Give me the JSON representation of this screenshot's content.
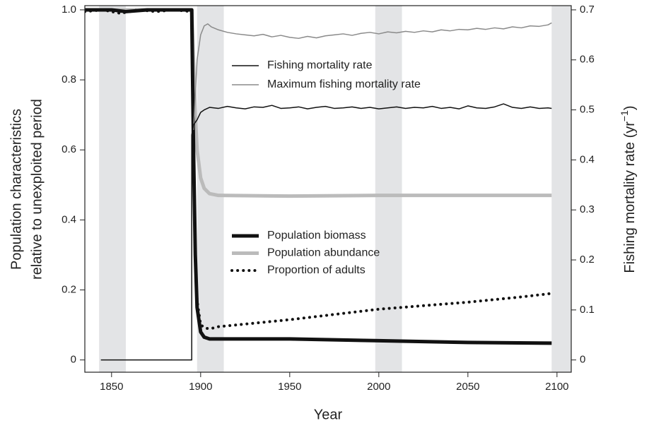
{
  "chart_data": {
    "type": "line",
    "xlabel": "Year",
    "ylabel": [
      "Population characteristics",
      "relative to unexploited period"
    ],
    "y2label": [
      "Fishing mortality rate (yr",
      "−1",
      ")"
    ],
    "xlim": [
      1835,
      2108
    ],
    "xticks": [
      1850,
      1900,
      1950,
      2000,
      2050,
      2100
    ],
    "ylim": [
      -0.035,
      1.012
    ],
    "yticks": [
      0,
      0.2,
      0.4,
      0.6,
      0.8,
      {
        "value": 1,
        "label": "1.0"
      }
    ],
    "y2lim": [
      -0.0245,
      0.7084
    ],
    "y2ticks": [
      0,
      0.1,
      0.2,
      0.3,
      0.4,
      0.5,
      0.6,
      0.7
    ],
    "shaded_periods": [
      [
        1843,
        1858
      ],
      [
        1898,
        1913
      ],
      [
        1998,
        2013
      ],
      [
        2097,
        2108
      ]
    ],
    "series": [
      {
        "name": "Fishing mortality rate",
        "axis": "y2",
        "color": "#111111",
        "width": 1.5,
        "dash": "solid",
        "x": [
          1844,
          1895,
          1895,
          1896,
          1898,
          1900,
          1902,
          1905,
          1910,
          1915,
          1920,
          1925,
          1930,
          1935,
          1940,
          1945,
          1950,
          1955,
          1960,
          1965,
          1970,
          1975,
          1980,
          1985,
          1990,
          1995,
          2000,
          2005,
          2010,
          2015,
          2020,
          2025,
          2030,
          2035,
          2040,
          2045,
          2050,
          2055,
          2060,
          2065,
          2070,
          2075,
          2080,
          2085,
          2090,
          2095,
          2097
        ],
        "values": [
          0,
          0,
          0.45,
          0.47,
          0.48,
          0.495,
          0.5,
          0.505,
          0.503,
          0.507,
          0.504,
          0.502,
          0.506,
          0.505,
          0.509,
          0.503,
          0.504,
          0.506,
          0.502,
          0.505,
          0.507,
          0.503,
          0.504,
          0.506,
          0.503,
          0.505,
          0.502,
          0.504,
          0.506,
          0.503,
          0.505,
          0.504,
          0.507,
          0.503,
          0.505,
          0.502,
          0.508,
          0.504,
          0.503,
          0.506,
          0.512,
          0.505,
          0.503,
          0.506,
          0.503,
          0.504,
          0.503
        ]
      },
      {
        "name": "Maximum fishing mortality rate",
        "axis": "y2",
        "color": "#8a8a8a",
        "width": 1.5,
        "dash": "solid",
        "x": [
          1896,
          1898,
          1900,
          1902,
          1904,
          1906,
          1910,
          1915,
          1920,
          1925,
          1930,
          1935,
          1940,
          1945,
          1950,
          1955,
          1960,
          1965,
          1970,
          1975,
          1980,
          1985,
          1990,
          1995,
          2000,
          2005,
          2010,
          2015,
          2020,
          2025,
          2030,
          2035,
          2040,
          2045,
          2050,
          2055,
          2060,
          2065,
          2070,
          2075,
          2080,
          2085,
          2090,
          2095,
          2097
        ],
        "values": [
          0.46,
          0.6,
          0.65,
          0.668,
          0.672,
          0.666,
          0.66,
          0.655,
          0.652,
          0.65,
          0.648,
          0.651,
          0.646,
          0.649,
          0.645,
          0.643,
          0.647,
          0.644,
          0.648,
          0.65,
          0.652,
          0.649,
          0.653,
          0.655,
          0.652,
          0.656,
          0.654,
          0.657,
          0.655,
          0.658,
          0.656,
          0.66,
          0.658,
          0.661,
          0.66,
          0.663,
          0.661,
          0.664,
          0.662,
          0.666,
          0.664,
          0.668,
          0.667,
          0.67,
          0.674
        ]
      },
      {
        "name": "Population biomass",
        "axis": "y",
        "color": "#111111",
        "width": 5,
        "dash": "solid",
        "x": [
          1835,
          1850,
          1858,
          1870,
          1880,
          1895,
          1896,
          1897,
          1898,
          1900,
          1902,
          1905,
          1950,
          2000,
          2050,
          2097
        ],
        "values": [
          1,
          1,
          0.995,
          1,
          1,
          1,
          0.6,
          0.3,
          0.15,
          0.08,
          0.065,
          0.06,
          0.06,
          0.055,
          0.05,
          0.048
        ]
      },
      {
        "name": "Population abundance",
        "axis": "y",
        "color": "#bbbbbb",
        "width": 5,
        "dash": "solid",
        "x": [
          1835,
          1895,
          1896,
          1897,
          1898,
          1900,
          1902,
          1905,
          1910,
          1950,
          2000,
          2097
        ],
        "values": [
          1,
          1,
          0.85,
          0.7,
          0.6,
          0.52,
          0.49,
          0.475,
          0.47,
          0.468,
          0.47,
          0.47
        ]
      },
      {
        "name": "Proportion of adults",
        "axis": "y",
        "color": "#111111",
        "width": 4,
        "dash": "dotted",
        "x": [
          1835,
          1845,
          1855,
          1865,
          1875,
          1885,
          1895,
          1896,
          1897,
          1898,
          1900,
          1903,
          1906,
          1910,
          1920,
          1950,
          2000,
          2050,
          2080,
          2097
        ],
        "values": [
          0.995,
          1,
          0.99,
          1,
          0.995,
          1,
          0.995,
          0.6,
          0.3,
          0.17,
          0.1,
          0.09,
          0.09,
          0.095,
          0.1,
          0.115,
          0.145,
          0.165,
          0.18,
          0.19
        ]
      }
    ]
  }
}
